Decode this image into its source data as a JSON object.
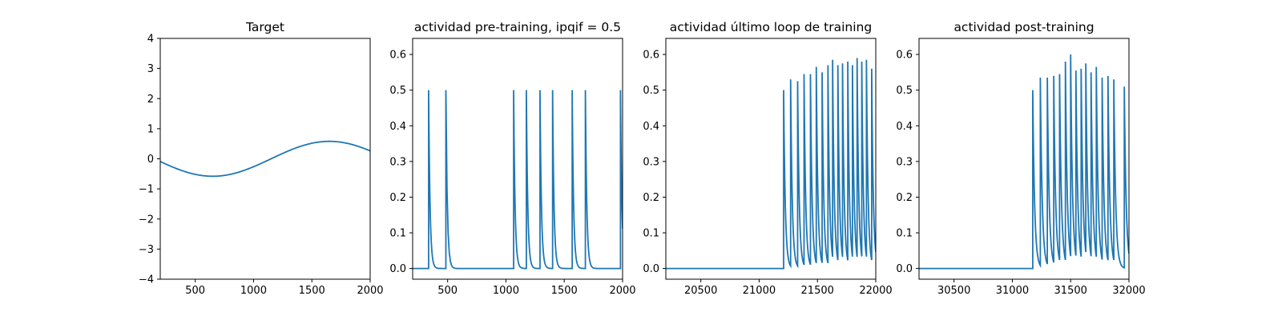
{
  "figure": {
    "background": "#ffffff",
    "line_color": "#1f77b4"
  },
  "chart_data": [
    {
      "type": "line",
      "title": "Target",
      "xlim": [
        200,
        2000
      ],
      "ylim": [
        -4,
        4
      ],
      "xticks": [
        500,
        1000,
        1500,
        2000
      ],
      "yticks": [
        -4,
        -3,
        -2,
        -1,
        0,
        1,
        2,
        3,
        4
      ],
      "signal": {
        "kind": "sine",
        "amplitude": 0.58,
        "period": 2000,
        "phase_x": 1150
      }
    },
    {
      "type": "line",
      "title": "actividad pre-training, ipqif = 0.5",
      "xlim": [
        200,
        2000
      ],
      "ylim": [
        -0.03,
        0.645
      ],
      "xticks": [
        500,
        1000,
        1500,
        2000
      ],
      "yticks": [
        0.0,
        0.1,
        0.2,
        0.3,
        0.4,
        0.5,
        0.6
      ],
      "signal": {
        "kind": "spikes",
        "start": 200,
        "end": 2000,
        "baseline": 0,
        "decay": 12,
        "spikes": [
          [
            337,
            0.5
          ],
          [
            485,
            0.5
          ],
          [
            1066,
            0.5
          ],
          [
            1175,
            0.5
          ],
          [
            1292,
            0.5
          ],
          [
            1400,
            0.5
          ],
          [
            1568,
            0.5
          ],
          [
            1681,
            0.5
          ],
          [
            1982,
            0.5
          ]
        ]
      }
    },
    {
      "type": "line",
      "title": "actividad último loop de training",
      "xlim": [
        20200,
        22000
      ],
      "ylim": [
        -0.03,
        0.645
      ],
      "xticks": [
        20500,
        21000,
        21500,
        22000
      ],
      "yticks": [
        0.0,
        0.1,
        0.2,
        0.3,
        0.4,
        0.5,
        0.6
      ],
      "signal": {
        "kind": "spikes",
        "start": 20200,
        "end": 22000,
        "baseline": 0,
        "decay": 14,
        "spikes": [
          [
            21210,
            0.5
          ],
          [
            21270,
            0.53
          ],
          [
            21330,
            0.525
          ],
          [
            21385,
            0.545
          ],
          [
            21440,
            0.545
          ],
          [
            21490,
            0.565
          ],
          [
            21540,
            0.55
          ],
          [
            21590,
            0.57
          ],
          [
            21630,
            0.585
          ],
          [
            21675,
            0.57
          ],
          [
            21715,
            0.575
          ],
          [
            21760,
            0.58
          ],
          [
            21800,
            0.57
          ],
          [
            21840,
            0.59
          ],
          [
            21880,
            0.58
          ],
          [
            21920,
            0.585
          ],
          [
            21965,
            0.56
          ]
        ]
      }
    },
    {
      "type": "line",
      "title": "actividad post-training",
      "xlim": [
        30200,
        32000
      ],
      "ylim": [
        -0.03,
        0.645
      ],
      "xticks": [
        30500,
        31000,
        31500,
        32000
      ],
      "yticks": [
        0.0,
        0.1,
        0.2,
        0.3,
        0.4,
        0.5,
        0.6
      ],
      "signal": {
        "kind": "spikes",
        "start": 30200,
        "end": 32000,
        "baseline": 0,
        "decay": 16,
        "spikes": [
          [
            31175,
            0.5
          ],
          [
            31240,
            0.535
          ],
          [
            31300,
            0.535
          ],
          [
            31355,
            0.54
          ],
          [
            31405,
            0.545
          ],
          [
            31455,
            0.58
          ],
          [
            31500,
            0.6
          ],
          [
            31545,
            0.555
          ],
          [
            31590,
            0.56
          ],
          [
            31630,
            0.575
          ],
          [
            31675,
            0.55
          ],
          [
            31720,
            0.565
          ],
          [
            31770,
            0.535
          ],
          [
            31820,
            0.54
          ],
          [
            31870,
            0.53
          ],
          [
            31960,
            0.51
          ]
        ]
      }
    }
  ]
}
